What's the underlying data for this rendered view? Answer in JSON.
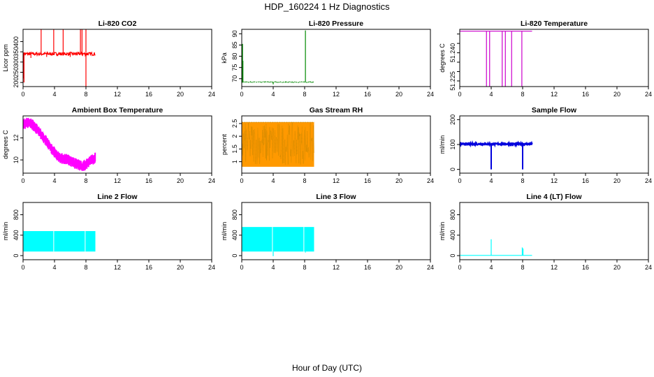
{
  "figure": {
    "title": "HDP_160224  1 Hz Diagnostics",
    "xlabel": "Hour of Day (UTC)"
  },
  "chart_data": [
    {
      "type": "line",
      "id": "co2",
      "title": "Li-820 CO2",
      "ylabel": "Licor ppm",
      "color": "#ff0000",
      "xlim": [
        0,
        24
      ],
      "ylim": [
        180,
        460
      ],
      "xticks": [
        0,
        4,
        8,
        12,
        16,
        20,
        24
      ],
      "yticks": [
        200,
        250,
        300,
        350,
        400
      ],
      "style": "line",
      "base": 340,
      "noise": 8,
      "band": null,
      "spikes": [
        [
          2.3,
          470
        ],
        [
          3.9,
          470
        ],
        [
          5.1,
          470
        ],
        [
          7.3,
          470
        ],
        [
          7.5,
          470
        ],
        [
          8.0,
          470
        ],
        [
          0.08,
          220
        ],
        [
          0.12,
          200
        ],
        [
          8.0,
          180
        ],
        [
          1.0,
          320
        ],
        [
          3.0,
          325
        ],
        [
          6.0,
          325
        ]
      ],
      "segments": [
        [
          0.05,
          9.2
        ]
      ]
    },
    {
      "type": "line",
      "id": "pressure",
      "title": "Li-820 Pressure",
      "ylabel": "kPa",
      "color": "#008800",
      "xlim": [
        0,
        24
      ],
      "ylim": [
        66.5,
        92
      ],
      "xticks": [
        0,
        4,
        8,
        12,
        16,
        20,
        24
      ],
      "yticks": [
        70,
        75,
        80,
        85,
        90
      ],
      "style": "dotted",
      "base": 68.5,
      "noise": 0.15,
      "band": null,
      "spikes": [
        [
          0.1,
          85.5
        ],
        [
          0.15,
          78
        ],
        [
          8.1,
          91.5
        ],
        [
          4.0,
          67.5
        ]
      ],
      "segments": [
        [
          0.05,
          9.2
        ]
      ]
    },
    {
      "type": "line",
      "id": "licortemp",
      "title": "Li-820 Temperature",
      "ylabel": "degrees C",
      "color": "#cc00cc",
      "xlim": [
        0,
        24
      ],
      "ylim": [
        51.222,
        51.2525
      ],
      "xticks": [
        0,
        4,
        8,
        12,
        16,
        20,
        24
      ],
      "yticks": [
        51.225,
        51.24
      ],
      "yticks_minor": [
        51.23,
        51.235,
        51.245,
        51.25
      ],
      "style": "line",
      "base": 51.2515,
      "noise": 0,
      "band": null,
      "spikes": [
        [
          3.4,
          51.222
        ],
        [
          3.8,
          51.222
        ],
        [
          5.4,
          51.222
        ],
        [
          5.8,
          51.222
        ],
        [
          6.6,
          51.222
        ],
        [
          7.9,
          51.222
        ]
      ],
      "segments": [
        [
          0.05,
          9.2
        ]
      ]
    },
    {
      "type": "band",
      "id": "ambient",
      "title": "Ambient Box Temperature",
      "ylabel": "degrees C",
      "color": "#ff00ff",
      "xlim": [
        0,
        24
      ],
      "ylim": [
        8.8,
        14.0
      ],
      "xticks": [
        0,
        4,
        8,
        12,
        16,
        20,
        24
      ],
      "yticks": [
        10,
        12
      ],
      "style": "band",
      "curve_x": [
        0,
        0.5,
        1.0,
        1.5,
        2.0,
        2.5,
        3.0,
        3.5,
        4.0,
        4.5,
        5.0,
        5.5,
        6.0,
        6.5,
        7.0,
        7.5,
        8.0,
        8.5,
        9.0,
        9.2
      ],
      "curve_y": [
        13.2,
        13.4,
        13.3,
        13.0,
        12.6,
        12.1,
        11.7,
        11.1,
        10.7,
        10.3,
        10.1,
        10.1,
        9.9,
        9.7,
        9.6,
        9.4,
        9.6,
        9.9,
        10.1,
        10.2
      ],
      "band_width": 0.5
    },
    {
      "type": "band",
      "id": "rh",
      "title": "Gas Stream RH",
      "ylabel": "percent",
      "color": "#ff9900",
      "edge_color": "#cc8800",
      "xlim": [
        0,
        24
      ],
      "ylim": [
        0.55,
        2.8
      ],
      "xticks": [
        0,
        4,
        8,
        12,
        16,
        20,
        24
      ],
      "yticks": [
        1.0,
        1.5,
        2.0,
        2.5
      ],
      "style": "fill",
      "low": 0.8,
      "high": 2.55
    },
    {
      "type": "line",
      "id": "sample",
      "title": "Sample Flow",
      "ylabel": "ml/min",
      "color": "#0000dd",
      "xlim": [
        0,
        24
      ],
      "ylim": [
        -15,
        215
      ],
      "xticks": [
        0,
        4,
        8,
        12,
        16,
        20,
        24
      ],
      "yticks": [
        0,
        100,
        200
      ],
      "style": "thick",
      "base": 102,
      "noise": 3,
      "band": null,
      "spikes": [
        [
          4.0,
          0
        ],
        [
          8.0,
          0
        ]
      ],
      "segments": [
        [
          0.05,
          9.2
        ]
      ]
    },
    {
      "type": "block",
      "id": "line2",
      "title": "Line 2 Flow",
      "ylabel": "ml/min",
      "color": "#00ffff",
      "xlim": [
        0,
        24
      ],
      "ylim": [
        -80,
        1040
      ],
      "xticks": [
        0,
        4,
        8,
        12,
        16,
        20,
        24
      ],
      "yticks": [
        0,
        400,
        800
      ],
      "low": 80,
      "high": 480,
      "gaps": [
        3.9,
        7.9
      ],
      "segments": [
        [
          0.05,
          9.2
        ]
      ]
    },
    {
      "type": "block",
      "id": "line3",
      "title": "Line 3 Flow",
      "ylabel": "ml/min",
      "color": "#00ffff",
      "xlim": [
        0,
        24
      ],
      "ylim": [
        -80,
        1040
      ],
      "xticks": [
        0,
        4,
        8,
        12,
        16,
        20,
        24
      ],
      "yticks": [
        0,
        400,
        800
      ],
      "low": 80,
      "high": 560,
      "gaps": [
        3.9,
        7.9
      ],
      "dips": [
        [
          4.0,
          -10
        ],
        [
          8.1,
          60
        ]
      ],
      "segments": [
        [
          0.05,
          9.2
        ]
      ]
    },
    {
      "type": "line",
      "id": "line4",
      "title": "Line 4 (LT) Flow",
      "ylabel": "ml/min",
      "color": "#00ffff",
      "xlim": [
        0,
        24
      ],
      "ylim": [
        -80,
        1040
      ],
      "xticks": [
        0,
        4,
        8,
        12,
        16,
        20,
        24
      ],
      "yticks": [
        0,
        400,
        800
      ],
      "style": "line",
      "base": 5,
      "noise": 0,
      "band": null,
      "spikes": [
        [
          4.0,
          320
        ],
        [
          7.95,
          160
        ],
        [
          8.05,
          140
        ]
      ],
      "segments": [
        [
          0.05,
          9.2
        ]
      ]
    }
  ]
}
